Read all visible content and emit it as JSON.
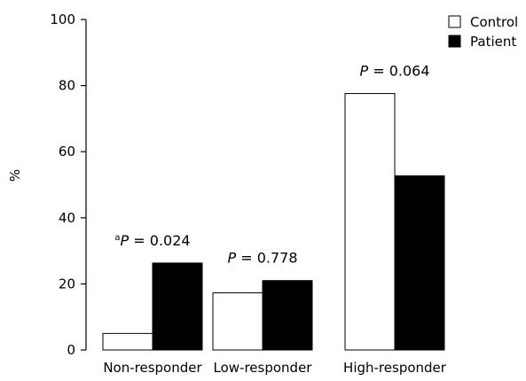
{
  "chart_data": {
    "type": "bar",
    "categories": [
      "Non-responder",
      "Low-responder",
      "High-responder"
    ],
    "series": [
      {
        "name": "Control",
        "values": [
          5,
          17.3,
          77.6
        ],
        "color": "#ffffff"
      },
      {
        "name": "Patient",
        "values": [
          26.3,
          21,
          52.7
        ],
        "color": "#000000"
      }
    ],
    "ylabel": "%",
    "ylim": [
      0,
      100
    ],
    "yticks": [
      0,
      20,
      40,
      60,
      80,
      100
    ],
    "grid": false,
    "legend_position": "top-right",
    "annotations": [
      {
        "category": "Non-responder",
        "superscript": "a",
        "italic": "P",
        "text": " = 0.024"
      },
      {
        "category": "Low-responder",
        "superscript": "",
        "italic": "P",
        "text": " = 0.778"
      },
      {
        "category": "High-responder",
        "superscript": "",
        "italic": "P",
        "text": " = 0.064"
      }
    ]
  }
}
